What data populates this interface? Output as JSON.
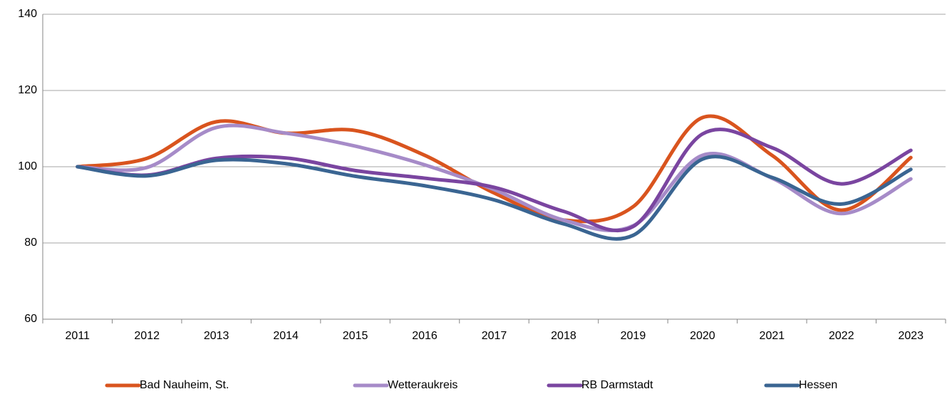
{
  "chart_data": {
    "type": "line",
    "categories": [
      "2011",
      "2012",
      "2013",
      "2014",
      "2015",
      "2016",
      "2017",
      "2018",
      "2019",
      "2020",
      "2021",
      "2022",
      "2023"
    ],
    "series": [
      {
        "name": "Bad Nauheim, St.",
        "color": "#d9541e",
        "values": [
          100,
          102.2,
          111.8,
          108.8,
          109.5,
          103,
          93.1,
          86,
          89.5,
          112.9,
          103,
          88.6,
          102.4
        ]
      },
      {
        "name": "Wetteraukreis",
        "color": "#a68bc8",
        "values": [
          100,
          99.8,
          110.3,
          108.8,
          105.4,
          100.5,
          94,
          86,
          84.5,
          103,
          97,
          87.7,
          96.8
        ]
      },
      {
        "name": "RB Darmstadt",
        "color": "#7a45a0",
        "values": [
          100,
          97.8,
          102.2,
          102.3,
          99,
          97,
          94.6,
          88.3,
          84.3,
          108.6,
          105,
          95.5,
          104.3
        ]
      },
      {
        "name": "Hessen",
        "color": "#3a6592",
        "values": [
          100,
          97.6,
          101.7,
          100.8,
          97.5,
          95,
          91.3,
          85,
          82,
          102,
          97.2,
          90.2,
          99.3
        ]
      }
    ],
    "ylim": [
      60,
      140
    ],
    "yticks": [
      60,
      80,
      100,
      120,
      140
    ],
    "grid": true,
    "smooth": true,
    "legend": "bottom"
  }
}
